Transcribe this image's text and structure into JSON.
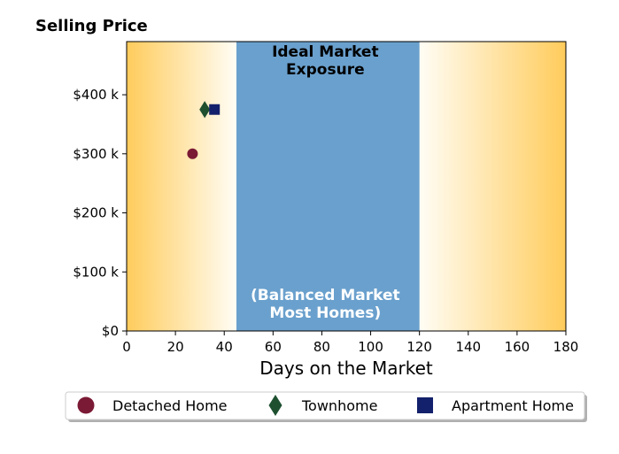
{
  "chart_data": {
    "type": "scatter",
    "title": "Selling Price",
    "xlabel": "Days on the Market",
    "ylabel": "",
    "xlim": [
      0,
      180
    ],
    "ylim": [
      0,
      490
    ],
    "x_ticks": [
      0,
      20,
      40,
      60,
      80,
      100,
      120,
      140,
      160,
      180
    ],
    "x_tick_labels": [
      "0",
      "20",
      "40",
      "60",
      "80",
      "100",
      "120",
      "140",
      "160",
      "180"
    ],
    "y_ticks": [
      0,
      100,
      200,
      300,
      400
    ],
    "y_tick_labels": [
      "$0",
      "$100 k",
      "$200 k",
      "$300 k",
      "$400 k"
    ],
    "grid": false,
    "legend_position": "bottom",
    "band": {
      "x_start": 45,
      "x_end": 120,
      "color": "#6aa0cd",
      "label_top_line1": "Ideal Market",
      "label_top_line2": "Exposure",
      "label_bottom_line1": "(Balanced Market",
      "label_bottom_line2": "Most Homes)"
    },
    "background_gradient": {
      "edge_color": "#ffcc5c",
      "center_color": "#fffdf5"
    },
    "series": [
      {
        "name": "Detached Home",
        "marker": "circle",
        "color": "#7b1a35",
        "x": [
          27
        ],
        "y": [
          300
        ]
      },
      {
        "name": "Townhome",
        "marker": "diamond",
        "color": "#1e5030",
        "x": [
          32
        ],
        "y": [
          375
        ]
      },
      {
        "name": "Apartment Home",
        "marker": "square",
        "color": "#13206b",
        "x": [
          36
        ],
        "y": [
          375
        ]
      }
    ]
  }
}
